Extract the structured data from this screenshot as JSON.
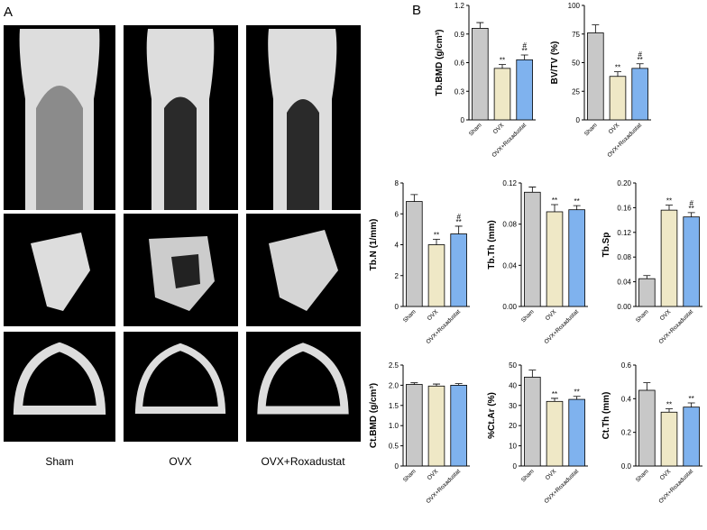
{
  "figure": {
    "panel_a_label": "A",
    "panel_b_label": "B",
    "image_labels": [
      "Sham",
      "OVX",
      "OVX+Roxadustat"
    ]
  },
  "chart_data": [
    {
      "type": "bar",
      "ylabel": "Tb.BMD (g/cm³)",
      "categories": [
        "Sham",
        "OVX",
        "OVX+Roxadustat"
      ],
      "values": [
        0.96,
        0.54,
        0.63
      ],
      "errors": [
        0.06,
        0.04,
        0.05
      ],
      "colors": [
        "#c8c8c8",
        "#efe8c6",
        "#7fb2ee"
      ],
      "significance": [
        [],
        [
          "**"
        ],
        [
          "#",
          "**"
        ]
      ],
      "ylim": [
        0,
        1.2
      ],
      "yticks": [
        0,
        0.3,
        0.6,
        0.9,
        1.2
      ]
    },
    {
      "type": "bar",
      "ylabel": "BV/TV (%)",
      "categories": [
        "Sham",
        "OVX",
        "OVX+Roxadustat"
      ],
      "values": [
        76,
        38,
        45
      ],
      "errors": [
        7,
        4,
        4
      ],
      "colors": [
        "#c8c8c8",
        "#efe8c6",
        "#7fb2ee"
      ],
      "significance": [
        [],
        [
          "**"
        ],
        [
          "#",
          "**"
        ]
      ],
      "ylim": [
        0,
        100
      ],
      "yticks": [
        0,
        25,
        50,
        75,
        100
      ]
    },
    {
      "type": "bar",
      "ylabel": "Tb.N (1/mm)",
      "categories": [
        "Sham",
        "OVX",
        "OVX+Roxadustat"
      ],
      "values": [
        6.8,
        4.0,
        4.7
      ],
      "errors": [
        0.45,
        0.35,
        0.5
      ],
      "colors": [
        "#c8c8c8",
        "#efe8c6",
        "#7fb2ee"
      ],
      "significance": [
        [],
        [
          "**"
        ],
        [
          "#",
          "**"
        ]
      ],
      "ylim": [
        0,
        8
      ],
      "yticks": [
        0,
        2,
        4,
        6,
        8
      ]
    },
    {
      "type": "bar",
      "ylabel": "Tb.Th (mm)",
      "categories": [
        "Sham",
        "OVX",
        "OVX+Roxadustat"
      ],
      "values": [
        0.111,
        0.092,
        0.094
      ],
      "errors": [
        0.005,
        0.007,
        0.004
      ],
      "colors": [
        "#c8c8c8",
        "#efe8c6",
        "#7fb2ee"
      ],
      "significance": [
        [],
        [
          "**"
        ],
        [
          "**"
        ]
      ],
      "ylim": [
        0,
        0.12
      ],
      "yticks": [
        {
          "value": 0,
          "label": "0.00"
        },
        0.04,
        0.08,
        0.12
      ]
    },
    {
      "type": "bar",
      "ylabel": "Tb.Sp",
      "categories": [
        "Sham",
        "OVX",
        "OVX+Roxadustat"
      ],
      "values": [
        0.045,
        0.156,
        0.145
      ],
      "errors": [
        0.005,
        0.008,
        0.007
      ],
      "colors": [
        "#c8c8c8",
        "#efe8c6",
        "#7fb2ee"
      ],
      "significance": [
        [],
        [
          "**"
        ],
        [
          "#",
          "**"
        ]
      ],
      "ylim": [
        0,
        0.2
      ],
      "yticks": [
        {
          "value": 0,
          "label": "0.00"
        },
        0.04,
        0.08,
        0.12,
        0.16,
        {
          "value": 0.2,
          "label": "0.20"
        }
      ]
    },
    {
      "type": "bar",
      "ylabel": "Ct.BMD (g/cm³)",
      "categories": [
        "Sham",
        "OVX",
        "OVX+Roxadustat"
      ],
      "values": [
        2.02,
        1.98,
        2.0
      ],
      "errors": [
        0.04,
        0.05,
        0.04
      ],
      "colors": [
        "#c8c8c8",
        "#efe8c6",
        "#7fb2ee"
      ],
      "significance": [
        [],
        [],
        []
      ],
      "ylim": [
        0,
        2.5
      ],
      "yticks": [
        0,
        0.5,
        {
          "value": 1,
          "label": "1.0"
        },
        1.5,
        {
          "value": 2,
          "label": "2.0"
        },
        2.5
      ]
    },
    {
      "type": "bar",
      "ylabel": "%Ct.Ar (%)",
      "categories": [
        "Sham",
        "OVX",
        "OVX+Roxadustat"
      ],
      "values": [
        44,
        32,
        33
      ],
      "errors": [
        3.5,
        1.5,
        1.5
      ],
      "colors": [
        "#c8c8c8",
        "#efe8c6",
        "#7fb2ee"
      ],
      "significance": [
        [],
        [
          "**"
        ],
        [
          "**"
        ]
      ],
      "ylim": [
        0,
        50
      ],
      "yticks": [
        0,
        10,
        20,
        30,
        40,
        50
      ]
    },
    {
      "type": "bar",
      "ylabel": "Ct.Th (mm)",
      "categories": [
        "Sham",
        "OVX",
        "OVX+Roxadustat"
      ],
      "values": [
        0.45,
        0.32,
        0.35
      ],
      "errors": [
        0.045,
        0.02,
        0.025
      ],
      "colors": [
        "#c8c8c8",
        "#efe8c6",
        "#7fb2ee"
      ],
      "significance": [
        [],
        [
          "**"
        ],
        [
          "**"
        ]
      ],
      "ylim": [
        0,
        0.6
      ],
      "yticks": [
        {
          "value": 0,
          "label": "0.0"
        },
        0.2,
        0.4,
        0.6
      ]
    }
  ]
}
